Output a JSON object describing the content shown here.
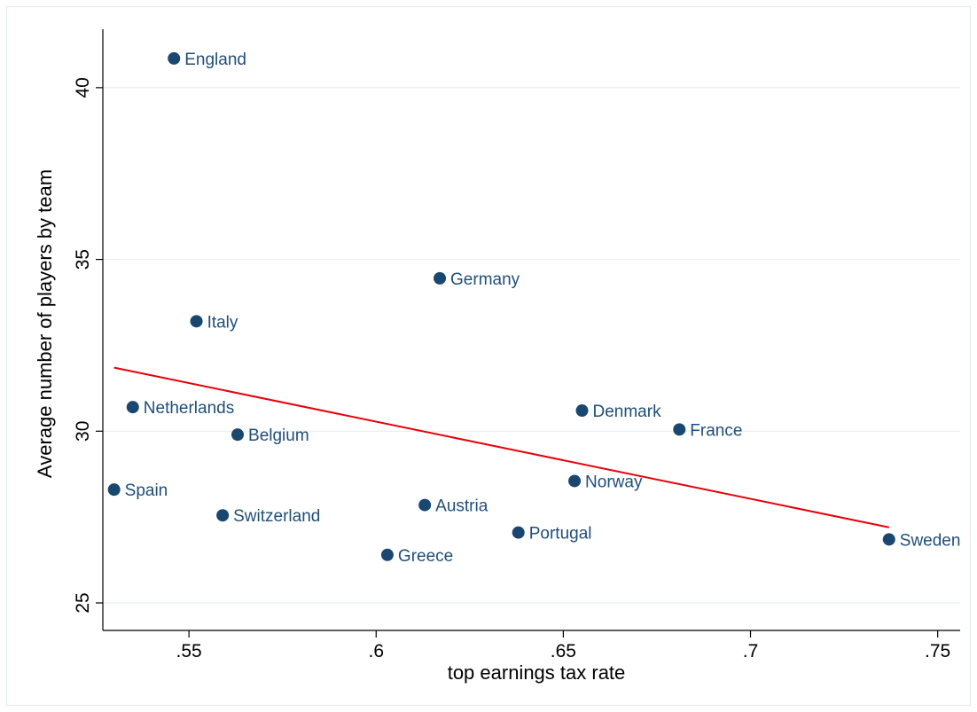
{
  "chart_data": {
    "type": "scatter",
    "title": "",
    "xlabel": "top earnings tax rate",
    "ylabel": "Average number of players by team",
    "xlim": [
      0.527,
      0.756
    ],
    "ylim": [
      24.2,
      41.7
    ],
    "x_ticks": [
      {
        "value": 0.55,
        "label": ".55"
      },
      {
        "value": 0.6,
        "label": ".6"
      },
      {
        "value": 0.65,
        "label": ".65"
      },
      {
        "value": 0.7,
        "label": ".7"
      },
      {
        "value": 0.75,
        "label": ".75"
      }
    ],
    "y_ticks": [
      {
        "value": 25,
        "label": "25"
      },
      {
        "value": 30,
        "label": "30"
      },
      {
        "value": 35,
        "label": "35"
      },
      {
        "value": 40,
        "label": "40"
      }
    ],
    "grid": true,
    "legend": "none",
    "points": [
      {
        "label": "England",
        "x": 0.546,
        "y": 40.85
      },
      {
        "label": "Germany",
        "x": 0.617,
        "y": 34.45
      },
      {
        "label": "Italy",
        "x": 0.552,
        "y": 33.2
      },
      {
        "label": "Netherlands",
        "x": 0.535,
        "y": 30.7
      },
      {
        "label": "Belgium",
        "x": 0.563,
        "y": 29.9
      },
      {
        "label": "Denmark",
        "x": 0.655,
        "y": 30.6
      },
      {
        "label": "France",
        "x": 0.681,
        "y": 30.05
      },
      {
        "label": "Spain",
        "x": 0.53,
        "y": 28.3
      },
      {
        "label": "Switzerland",
        "x": 0.559,
        "y": 27.55
      },
      {
        "label": "Austria",
        "x": 0.613,
        "y": 27.85
      },
      {
        "label": "Norway",
        "x": 0.653,
        "y": 28.55
      },
      {
        "label": "Portugal",
        "x": 0.638,
        "y": 27.05
      },
      {
        "label": "Greece",
        "x": 0.603,
        "y": 26.4
      },
      {
        "label": "Sweden",
        "x": 0.737,
        "y": 26.85
      }
    ],
    "fit_line": {
      "x": [
        0.53,
        0.737
      ],
      "y": [
        31.85,
        27.2
      ]
    },
    "colors": {
      "marker": "#1a476f",
      "label": "#1f4e79",
      "fit": "#e8000b",
      "grid": "#e8eef1"
    }
  }
}
